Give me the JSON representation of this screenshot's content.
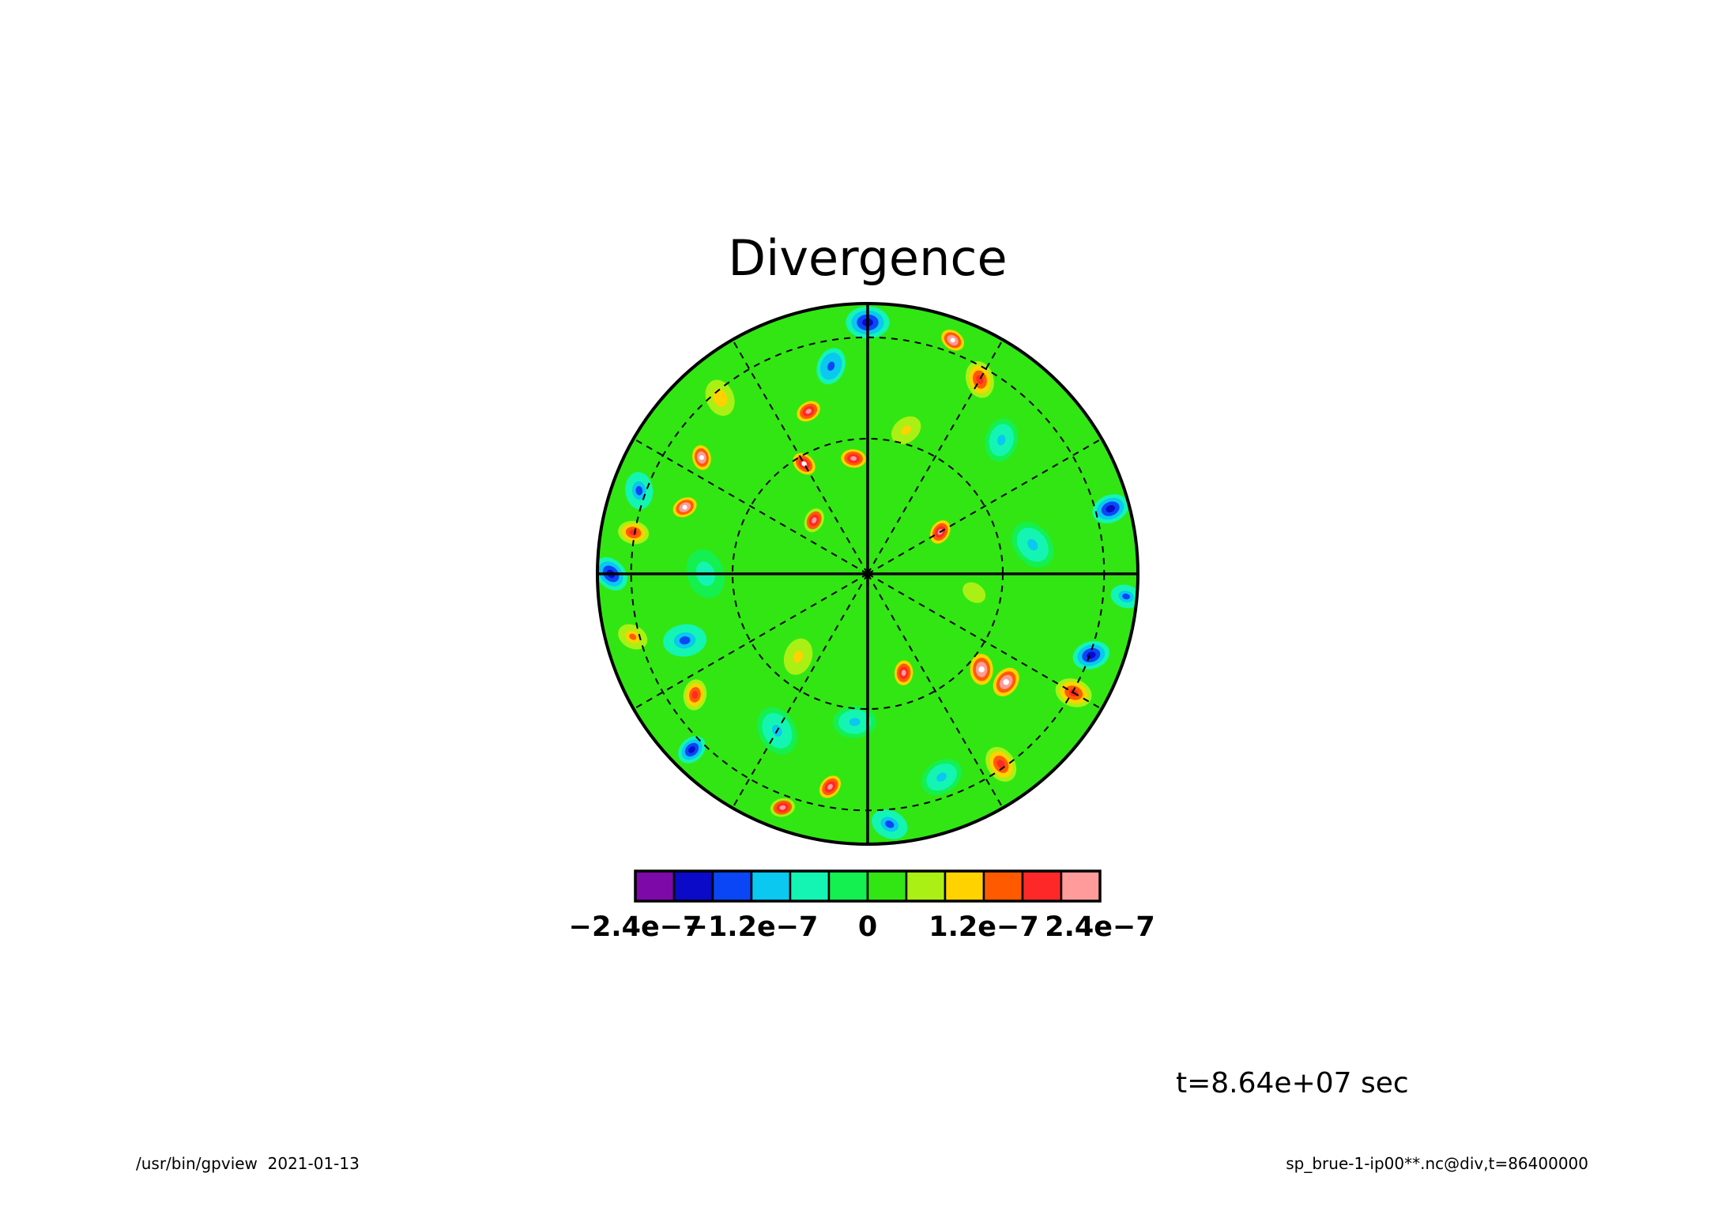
{
  "chart_data": {
    "type": "heatmap",
    "projection": "polar-stereographic",
    "title": "Divergence",
    "time_label": "t=8.64e+07 sec",
    "colorbar": {
      "colors": [
        "#7d0aa8",
        "#0a0ac8",
        "#0a46f5",
        "#0ac8f0",
        "#14f5b4",
        "#14f050",
        "#32e614",
        "#aaf014",
        "#ffd200",
        "#ff5a00",
        "#ff2828",
        "#ff9b9b"
      ],
      "tick_labels": [
        "−2.4e−7",
        "−1.2e−7",
        "0",
        "1.2e−7",
        "2.4e−7"
      ],
      "tick_values": [
        -2.4e-07,
        -1.2e-07,
        0,
        1.2e-07,
        2.4e-07
      ],
      "step": 4e-08,
      "range": [
        -2.4e-07,
        2.4e-07
      ]
    },
    "field_features": [
      {
        "theta": 90,
        "r": 0.93,
        "value": -1.8e-07,
        "extent": 0.07
      },
      {
        "theta": 70,
        "r": 0.92,
        "value": 2.6e-07,
        "extent": 0.04
      },
      {
        "theta": 60,
        "r": 0.83,
        "value": 1.7e-07,
        "extent": 0.06
      },
      {
        "theta": 100,
        "r": 0.78,
        "value": -1.5e-07,
        "extent": 0.06
      },
      {
        "theta": 110,
        "r": 0.64,
        "value": 2.4e-07,
        "extent": 0.04
      },
      {
        "theta": 97,
        "r": 0.43,
        "value": 2.4e-07,
        "extent": 0.04
      },
      {
        "theta": 120,
        "r": 0.47,
        "value": 2.5e-07,
        "extent": 0.04
      },
      {
        "theta": 145,
        "r": 0.75,
        "value": 2.6e-07,
        "extent": 0.04
      },
      {
        "theta": 135,
        "r": 0.28,
        "value": 2.2e-07,
        "extent": 0.04
      },
      {
        "theta": 160,
        "r": 0.72,
        "value": 2.6e-07,
        "extent": 0.04
      },
      {
        "theta": 170,
        "r": 0.88,
        "value": 2e-07,
        "extent": 0.05
      },
      {
        "theta": 180,
        "r": 0.95,
        "value": -1.7e-07,
        "extent": 0.06
      },
      {
        "theta": 160,
        "r": 0.9,
        "value": -1.4e-07,
        "extent": 0.06
      },
      {
        "theta": 30,
        "r": 0.31,
        "value": 2.4e-07,
        "extent": 0.04
      },
      {
        "theta": 15,
        "r": 0.93,
        "value": -1.9e-07,
        "extent": 0.06
      },
      {
        "theta": 355,
        "r": 0.96,
        "value": -1.4e-07,
        "extent": 0.05
      },
      {
        "theta": 10,
        "r": 0.62,
        "value": -9e-08,
        "extent": 0.08
      },
      {
        "theta": 320,
        "r": 0.55,
        "value": 2.7e-07,
        "extent": 0.05
      },
      {
        "theta": 322,
        "r": 0.65,
        "value": 2.7e-07,
        "extent": 0.05
      },
      {
        "theta": 340,
        "r": 0.88,
        "value": -1.8e-07,
        "extent": 0.06
      },
      {
        "theta": 330,
        "r": 0.88,
        "value": 1.8e-07,
        "extent": 0.06
      },
      {
        "theta": 305,
        "r": 0.86,
        "value": 2e-07,
        "extent": 0.06
      },
      {
        "theta": 290,
        "r": 0.39,
        "value": 2.4e-07,
        "extent": 0.04
      },
      {
        "theta": 260,
        "r": 0.8,
        "value": 2.4e-07,
        "extent": 0.04
      },
      {
        "theta": 250,
        "r": 0.92,
        "value": 2.2e-07,
        "extent": 0.04
      },
      {
        "theta": 275,
        "r": 0.93,
        "value": -1.4e-07,
        "extent": 0.06
      },
      {
        "theta": 240,
        "r": 0.67,
        "value": -1e-07,
        "extent": 0.08
      },
      {
        "theta": 215,
        "r": 0.78,
        "value": 1.6e-07,
        "extent": 0.05
      },
      {
        "theta": 225,
        "r": 0.92,
        "value": -1.8e-07,
        "extent": 0.05
      },
      {
        "theta": 200,
        "r": 0.72,
        "value": -1.3e-07,
        "extent": 0.07
      },
      {
        "theta": 195,
        "r": 0.9,
        "value": 1.4e-07,
        "extent": 0.05
      },
      {
        "theta": 130,
        "r": 0.85,
        "value": 1.2e-07,
        "extent": 0.06
      },
      {
        "theta": 45,
        "r": 0.7,
        "value": -9e-08,
        "extent": 0.07
      },
      {
        "theta": 75,
        "r": 0.55,
        "value": 9e-08,
        "extent": 0.07
      },
      {
        "theta": 265,
        "r": 0.55,
        "value": -8e-08,
        "extent": 0.07
      },
      {
        "theta": 350,
        "r": 0.4,
        "value": 7e-08,
        "extent": 0.08
      },
      {
        "theta": 180,
        "r": 0.6,
        "value": -7e-08,
        "extent": 0.08
      },
      {
        "theta": 230,
        "r": 0.4,
        "value": 8e-08,
        "extent": 0.08
      },
      {
        "theta": 290,
        "r": 0.8,
        "value": -8e-08,
        "extent": 0.07
      }
    ],
    "grid": {
      "meridian_angles_solid": [
        0,
        90,
        180,
        270
      ],
      "meridian_angles_dashed": [
        30,
        60,
        120,
        150,
        210,
        240,
        300,
        330
      ],
      "latitude_circles_relative_radius": [
        0.5,
        0.875
      ]
    }
  },
  "footer": {
    "left": "/usr/bin/gpview  2021-01-13",
    "right": "sp_brue-1-ip00**.nc@div,t=86400000"
  }
}
